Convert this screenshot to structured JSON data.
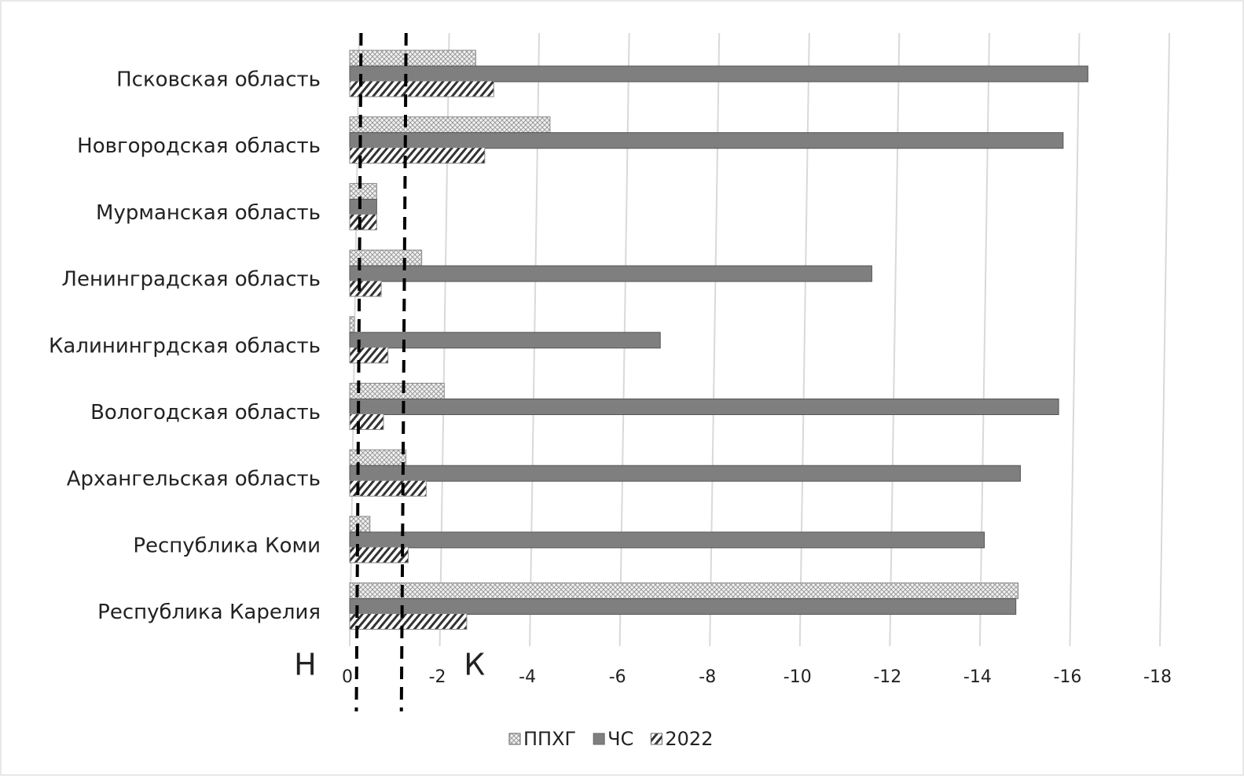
{
  "chart_data": {
    "type": "bar",
    "orientation": "horizontal",
    "categories": [
      "Псковская область",
      "Новгородская область",
      "Мурманская область",
      "Ленинградская область",
      "Калинингрдская область",
      "Вологодская область",
      "Архангельская область",
      "Республика Коми",
      "Республика Карелия"
    ],
    "series": [
      {
        "name": "ППХГ",
        "color": "#d9d9d9",
        "pattern": "crosshatch",
        "values": [
          -2.8,
          -4.45,
          -0.6,
          -1.6,
          -0.1,
          -2.1,
          -1.25,
          -0.45,
          -14.85
        ]
      },
      {
        "name": "ЧС",
        "color": "#7f7f7f",
        "pattern": "solid",
        "values": [
          -16.4,
          -15.85,
          -0.6,
          -11.6,
          -6.9,
          -15.75,
          -14.9,
          -14.1,
          -14.8
        ]
      },
      {
        "name": "2022",
        "color": "#404040",
        "pattern": "diagonal",
        "values": [
          -3.2,
          -3.0,
          -0.6,
          -0.7,
          -0.85,
          -0.75,
          -1.7,
          -1.3,
          -2.6
        ]
      }
    ],
    "xlim": [
      0,
      -18
    ],
    "xticks": [
      0,
      -2,
      -4,
      -6,
      -8,
      -10,
      -12,
      -14,
      -16,
      -18
    ],
    "grid": true,
    "legend": "bottom",
    "reference_lines": [
      {
        "label": "Н",
        "value": -0.2
      },
      {
        "label": "К",
        "value": -1.2
      }
    ]
  }
}
